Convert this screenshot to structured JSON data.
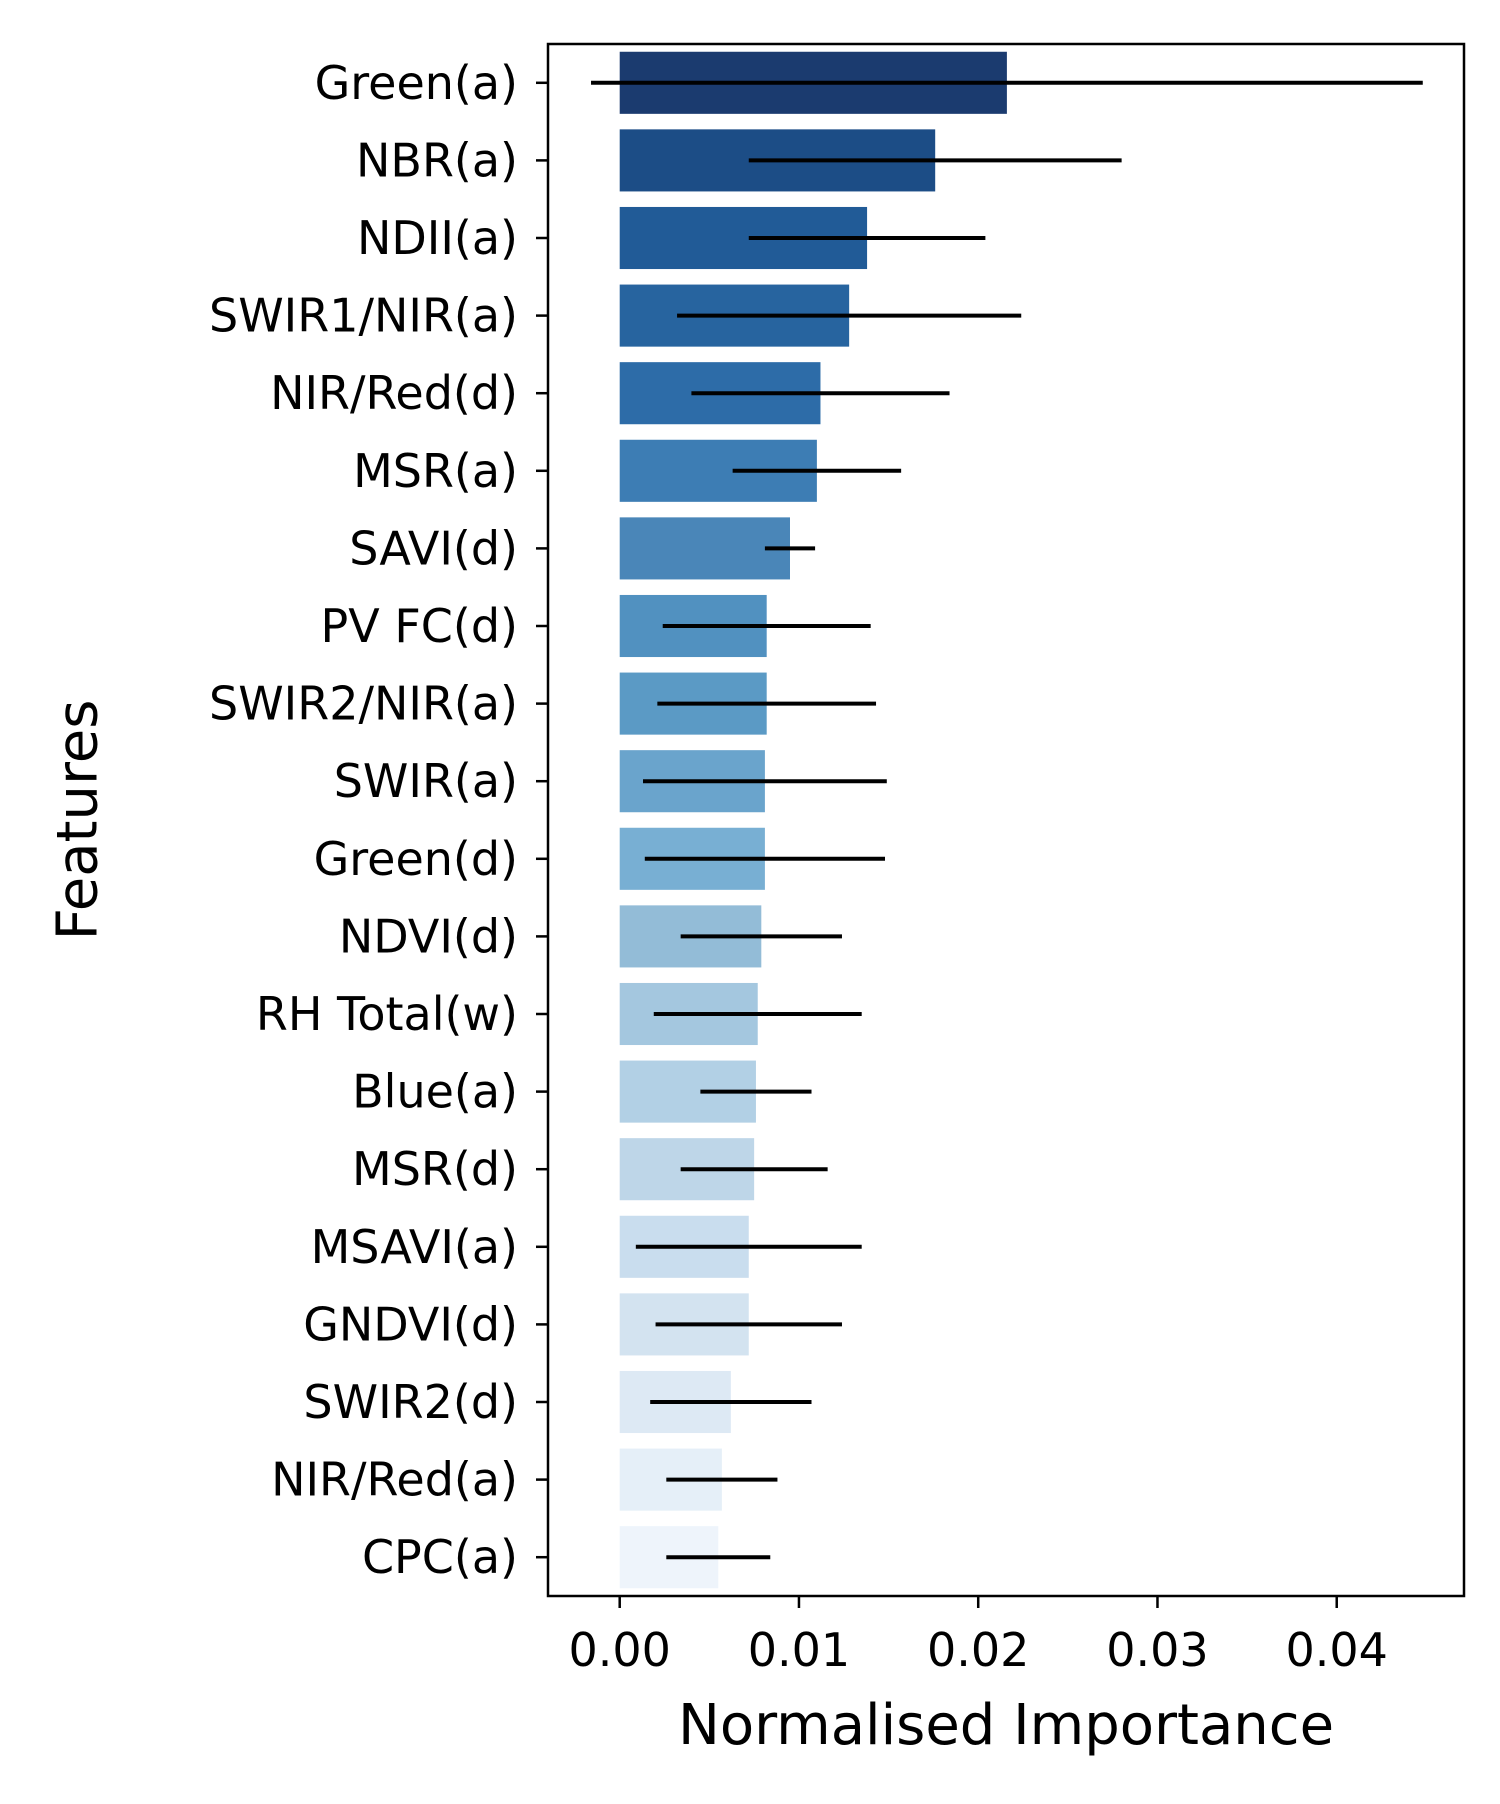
{
  "chart_data": {
    "type": "bar",
    "orientation": "horizontal",
    "xlabel": "Normalised Importance",
    "ylabel": "Features",
    "xlim": [
      -0.004,
      0.0471
    ],
    "xticks": [
      0.0,
      0.01,
      0.02,
      0.03,
      0.04
    ],
    "xtick_labels": [
      "0.00",
      "0.01",
      "0.02",
      "0.03",
      "0.04"
    ],
    "grid": false,
    "categories": [
      "Green(a)",
      "NBR(a)",
      "NDII(a)",
      "SWIR1/NIR(a)",
      "NIR/Red(d)",
      "MSR(a)",
      "SAVI(d)",
      "PV FC(d)",
      "SWIR2/NIR(a)",
      "SWIR(a)",
      "Green(d)",
      "NDVI(d)",
      "RH Total(w)",
      "Blue(a)",
      "MSR(d)",
      "MSAVI(a)",
      "GNDVI(d)",
      "SWIR2(d)",
      "NIR/Red(a)",
      "CPC(a)"
    ],
    "values": [
      0.0216,
      0.0176,
      0.0138,
      0.0128,
      0.0112,
      0.011,
      0.0095,
      0.0082,
      0.0082,
      0.0081,
      0.0081,
      0.0079,
      0.0077,
      0.0076,
      0.0075,
      0.0072,
      0.0072,
      0.0062,
      0.0057,
      0.0055
    ],
    "error": [
      0.0232,
      0.0104,
      0.0066,
      0.0096,
      0.0072,
      0.0047,
      0.0014,
      0.0058,
      0.0061,
      0.0068,
      0.0067,
      0.0045,
      0.0058,
      0.0031,
      0.0041,
      0.0063,
      0.0052,
      0.0045,
      0.0031,
      0.0029
    ],
    "colors": [
      "#1b3b6f",
      "#1c4d86",
      "#215b97",
      "#27649f",
      "#2d6ca8",
      "#3d7db4",
      "#4a86b8",
      "#5191c0",
      "#5b9ac5",
      "#6aa4cc",
      "#78afd3",
      "#93bcd7",
      "#a4c7df",
      "#b2d0e5",
      "#bed6e8",
      "#c9ddee",
      "#d3e3f0",
      "#dde9f4",
      "#e5eff8",
      "#eef4fb"
    ]
  }
}
